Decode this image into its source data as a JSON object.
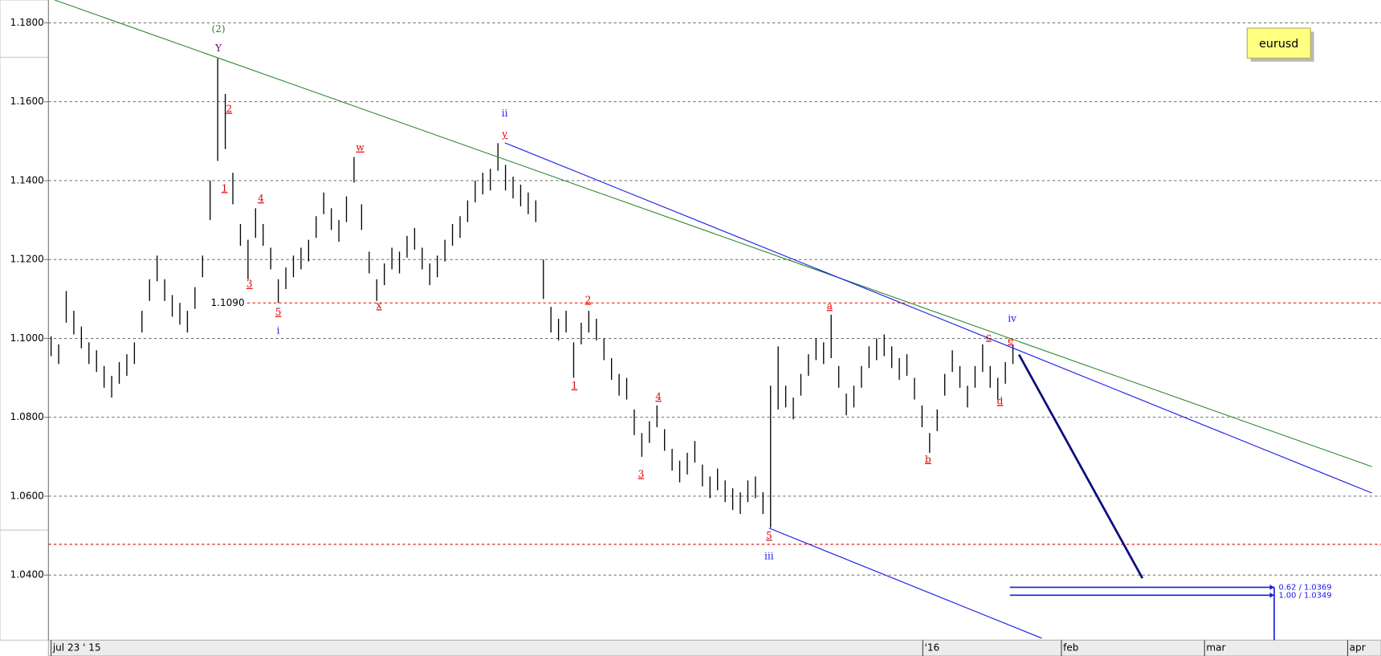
{
  "chart_data": {
    "type": "ohlc",
    "legend_label": "eurusd",
    "bar_color": "#000000",
    "grid": true,
    "xlim": [
      -0.35,
      175.6
    ],
    "xticks": [
      {
        "value": 0,
        "label": "jul 23 ' 15"
      },
      {
        "value": 115.1,
        "label": "'16"
      },
      {
        "value": 133.4,
        "label": "feb"
      },
      {
        "value": 152.3,
        "label": "mar"
      },
      {
        "value": 171.2,
        "label": "apr"
      }
    ],
    "ylim": [
      1.0235,
      1.1858
    ],
    "yticks": [
      {
        "value": 1.18,
        "label": "1.1800"
      },
      {
        "value": 1.16,
        "label": "1.1600"
      },
      {
        "value": 1.14,
        "label": "1.1400"
      },
      {
        "value": 1.12,
        "label": "1.1200"
      },
      {
        "value": 1.1,
        "label": "1.1000"
      },
      {
        "value": 1.08,
        "label": "1.0800"
      },
      {
        "value": 1.06,
        "label": "1.0600"
      },
      {
        "value": 1.04,
        "label": "1.0400"
      }
    ],
    "high": [
      1.1005,
      1.0985,
      1.112,
      1.107,
      1.103,
      1.099,
      1.097,
      1.093,
      1.0905,
      1.094,
      1.096,
      1.099,
      1.107,
      1.115,
      1.121,
      1.115,
      1.111,
      1.109,
      1.107,
      1.113,
      1.121,
      1.14,
      1.171,
      1.162,
      1.142,
      1.129,
      1.125,
      1.133,
      1.129,
      1.123,
      1.115,
      1.118,
      1.121,
      1.123,
      1.125,
      1.131,
      1.137,
      1.133,
      1.13,
      1.136,
      1.146,
      1.134,
      1.122,
      1.115,
      1.119,
      1.123,
      1.122,
      1.126,
      1.128,
      1.123,
      1.119,
      1.121,
      1.125,
      1.129,
      1.131,
      1.135,
      1.14,
      1.142,
      1.143,
      1.1495,
      1.144,
      1.141,
      1.139,
      1.137,
      1.135,
      1.12,
      1.108,
      1.105,
      1.107,
      1.099,
      1.104,
      1.107,
      1.105,
      1.1,
      1.095,
      1.091,
      1.09,
      1.082,
      1.076,
      1.079,
      1.083,
      1.077,
      1.072,
      1.069,
      1.071,
      1.074,
      1.068,
      1.065,
      1.067,
      1.064,
      1.062,
      1.061,
      1.064,
      1.065,
      1.061,
      1.088,
      1.098,
      1.088,
      1.085,
      1.091,
      1.096,
      1.1,
      1.099,
      1.106,
      1.093,
      1.086,
      1.088,
      1.093,
      1.098,
      1.1,
      1.101,
      1.098,
      1.095,
      1.096,
      1.09,
      1.083,
      1.076,
      1.082,
      1.091,
      1.097,
      1.093,
      1.088,
      1.093,
      1.0985,
      1.093,
      1.09,
      1.094,
      1.0985
    ],
    "low": [
      1.0955,
      1.0935,
      1.104,
      1.101,
      1.0975,
      1.0935,
      1.0915,
      1.0875,
      1.085,
      1.0885,
      1.0905,
      1.0935,
      1.1015,
      1.1095,
      1.1145,
      1.1095,
      1.1055,
      1.1035,
      1.1015,
      1.1075,
      1.1155,
      1.13,
      1.145,
      1.148,
      1.134,
      1.1235,
      1.115,
      1.1255,
      1.1235,
      1.1175,
      1.109,
      1.1125,
      1.1155,
      1.1175,
      1.1195,
      1.1255,
      1.1315,
      1.1275,
      1.1245,
      1.1295,
      1.1395,
      1.1275,
      1.1165,
      1.1095,
      1.1135,
      1.1175,
      1.1165,
      1.1205,
      1.1225,
      1.1175,
      1.1135,
      1.1155,
      1.1195,
      1.1235,
      1.1255,
      1.1295,
      1.1345,
      1.1365,
      1.1375,
      1.1425,
      1.1375,
      1.1355,
      1.1335,
      1.1315,
      1.1295,
      1.11,
      1.1015,
      1.0995,
      1.1015,
      1.09,
      1.0985,
      1.1015,
      1.0995,
      1.0945,
      1.0895,
      1.0855,
      1.0845,
      1.0755,
      1.07,
      1.0735,
      1.0775,
      1.0715,
      1.0665,
      1.0635,
      1.0655,
      1.0685,
      1.0625,
      1.0595,
      1.0615,
      1.0585,
      1.0565,
      1.0555,
      1.0585,
      1.0595,
      1.0555,
      1.052,
      1.082,
      1.0825,
      1.0795,
      1.0855,
      1.0905,
      1.0945,
      1.0935,
      1.095,
      1.0875,
      1.0805,
      1.0825,
      1.0875,
      1.0925,
      1.0945,
      1.0955,
      1.0925,
      1.0895,
      1.0905,
      1.0845,
      1.0775,
      1.071,
      1.0765,
      1.0855,
      1.0915,
      1.0875,
      1.0825,
      1.0875,
      1.0915,
      1.0875,
      1.0845,
      1.0885,
      1.0935
    ],
    "hlines": [
      {
        "value": 1.109,
        "label": "1.1090",
        "color": "#e00000"
      },
      {
        "value": 1.0478,
        "color": "#e00000"
      }
    ],
    "trendlines": [
      {
        "x": [
          0.47,
          174.4
        ],
        "y": [
          1.1858,
          1.0675
        ],
        "color": "#2e8b2e",
        "width": 1
      },
      {
        "x": [
          59.9,
          174.4
        ],
        "y": [
          1.1496,
          1.0608
        ],
        "color": "#1a1ae6",
        "width": 1
      },
      {
        "x": [
          94.8,
          130.8
        ],
        "y": [
          1.0519,
          1.024
        ],
        "color": "#1a1ae6",
        "width": 1
      },
      {
        "x": [
          127.8,
          144.1
        ],
        "y": [
          1.0959,
          1.0392
        ],
        "color": "#0a0a80",
        "width": 2.5
      }
    ],
    "targets": [
      {
        "value": 1.0369,
        "label": "0.62 / 1.0369"
      },
      {
        "value": 1.0349,
        "label": "1.00 / 1.0349"
      }
    ],
    "target_x": [
      126.6,
      161.5
    ],
    "target_color": "#1a1ae6",
    "annotations": [
      {
        "text": "(2)",
        "x": 22.1,
        "y": 1.1784,
        "color": "#2e8b2e"
      },
      {
        "text": "Y",
        "x": 22.1,
        "y": 1.1735,
        "color": "#800080"
      },
      {
        "text": "2",
        "x": 23.5,
        "y": 1.1581,
        "color": "#e00000"
      },
      {
        "text": "1",
        "x": 22.9,
        "y": 1.138,
        "color": "#e00000"
      },
      {
        "text": "4",
        "x": 27.7,
        "y": 1.1354,
        "color": "#e00000"
      },
      {
        "text": "3",
        "x": 26.2,
        "y": 1.1137,
        "color": "#e00000"
      },
      {
        "text": "5",
        "x": 30,
        "y": 1.1066,
        "color": "#e00000"
      },
      {
        "text": "i",
        "x": 30,
        "y": 1.1019,
        "color": "#1a1ae6"
      },
      {
        "text": "w",
        "x": 40.8,
        "y": 1.1483,
        "color": "#e00000"
      },
      {
        "text": "x",
        "x": 43.3,
        "y": 1.1083,
        "color": "#e00000"
      },
      {
        "text": "ii",
        "x": 59.9,
        "y": 1.157,
        "color": "#1a1ae6"
      },
      {
        "text": "y",
        "x": 59.9,
        "y": 1.1517,
        "color": "#e00000"
      },
      {
        "text": "2",
        "x": 70.9,
        "y": 1.1097,
        "color": "#e00000"
      },
      {
        "text": "1",
        "x": 69.1,
        "y": 1.088,
        "color": "#e00000"
      },
      {
        "text": "4",
        "x": 80.2,
        "y": 1.0851,
        "color": "#e00000"
      },
      {
        "text": "3",
        "x": 77.9,
        "y": 1.0655,
        "color": "#e00000"
      },
      {
        "text": "5",
        "x": 94.8,
        "y": 1.0499,
        "color": "#e00000"
      },
      {
        "text": "iii",
        "x": 94.8,
        "y": 1.0447,
        "color": "#1a1ae6"
      },
      {
        "text": "a",
        "x": 102.8,
        "y": 1.1081,
        "color": "#e00000"
      },
      {
        "text": "b",
        "x": 115.8,
        "y": 1.0693,
        "color": "#e00000"
      },
      {
        "text": "c",
        "x": 123.8,
        "y": 1.1003,
        "color": "#e00000"
      },
      {
        "text": "e",
        "x": 126.7,
        "y": 1.0994,
        "color": "#e00000"
      },
      {
        "text": "d",
        "x": 125.3,
        "y": 1.084,
        "color": "#e00000"
      },
      {
        "text": "iv",
        "x": 126.9,
        "y": 1.105,
        "color": "#1a1ae6"
      }
    ]
  }
}
